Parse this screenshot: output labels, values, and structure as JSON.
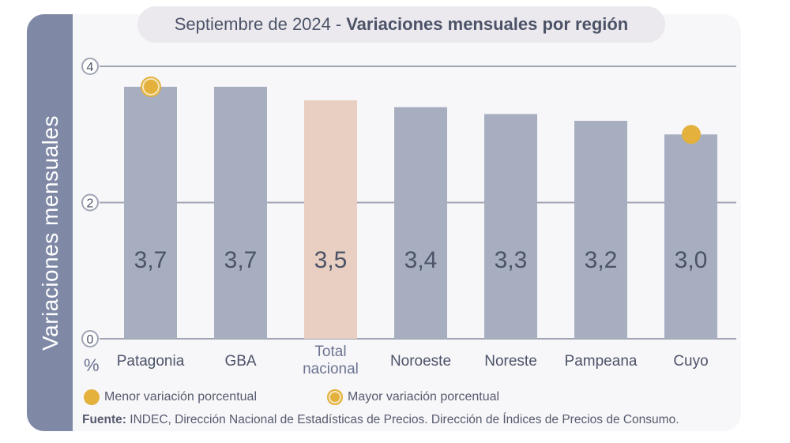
{
  "chart_data": {
    "type": "bar",
    "title_date": "Septiembre de 2024",
    "title_separator": "-",
    "title_main": "Variaciones mensuales por región",
    "ylabel": "Variaciones  mensuales",
    "yunit": "%",
    "ylim": [
      0,
      4
    ],
    "yticks": [
      "0",
      "2",
      "4"
    ],
    "categories": [
      "Patagonia",
      "GBA",
      "Total nacional",
      "Noroeste",
      "Noreste",
      "Pampeana",
      "Cuyo"
    ],
    "values": [
      3.7,
      3.7,
      3.5,
      3.4,
      3.3,
      3.2,
      3.0
    ],
    "value_labels": [
      "3,7",
      "3,7",
      "3,5",
      "3,4",
      "3,3",
      "3,2",
      "3,0"
    ],
    "highlight_index": 2,
    "max_marker_index": 0,
    "min_marker_index": 6
  },
  "colors": {
    "bar": "#a6aebf",
    "bar_highlight": "#e9cfc1",
    "marker": "#e3b13c",
    "grid": "#a0a5b4",
    "label": "#4c5368",
    "band": "#7f89a6"
  },
  "legend": {
    "min_label": "Menor variación porcentual",
    "max_label": "Mayor variación porcentual"
  },
  "source": {
    "prefix": "Fuente:",
    "text": "INDEC, Dirección Nacional de Estadísticas de Precios. Dirección de Índices de Precios de Consumo."
  }
}
